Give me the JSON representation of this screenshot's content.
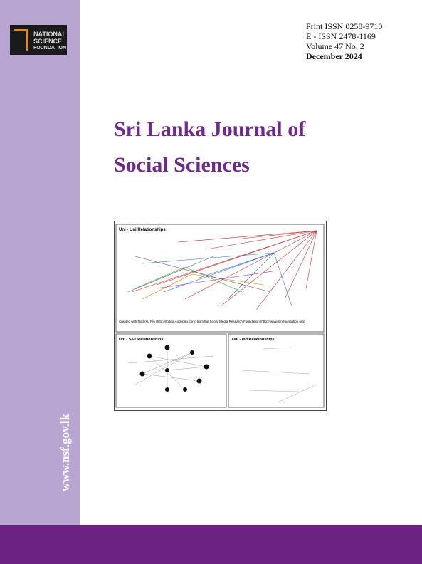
{
  "logo": {
    "line1": "NATIONAL",
    "line2": "SCIENCE",
    "line3": "FOUNDATION"
  },
  "issue": {
    "print_issn": "Print ISSN 0258-9710",
    "e_issn": "E - ISSN 2478-1169",
    "volume": "Volume 47 No. 2",
    "date": "December 2024"
  },
  "title": {
    "line1": "Sri Lanka Journal of",
    "line2": "Social Sciences"
  },
  "figure": {
    "panel1": {
      "title": "Uni - Uni Relationships",
      "credit": "Created with NodeXL Pro (http://nodexl.codeplex.com) from the Social Media Research Foundation (http:// www.smrfoundation.org)"
    },
    "panel2": {
      "title": "Uni - S&T Relationships"
    },
    "panel3": {
      "title": "Uni - Ind Relationships"
    }
  },
  "website": "www.nsf.gov.lk"
}
